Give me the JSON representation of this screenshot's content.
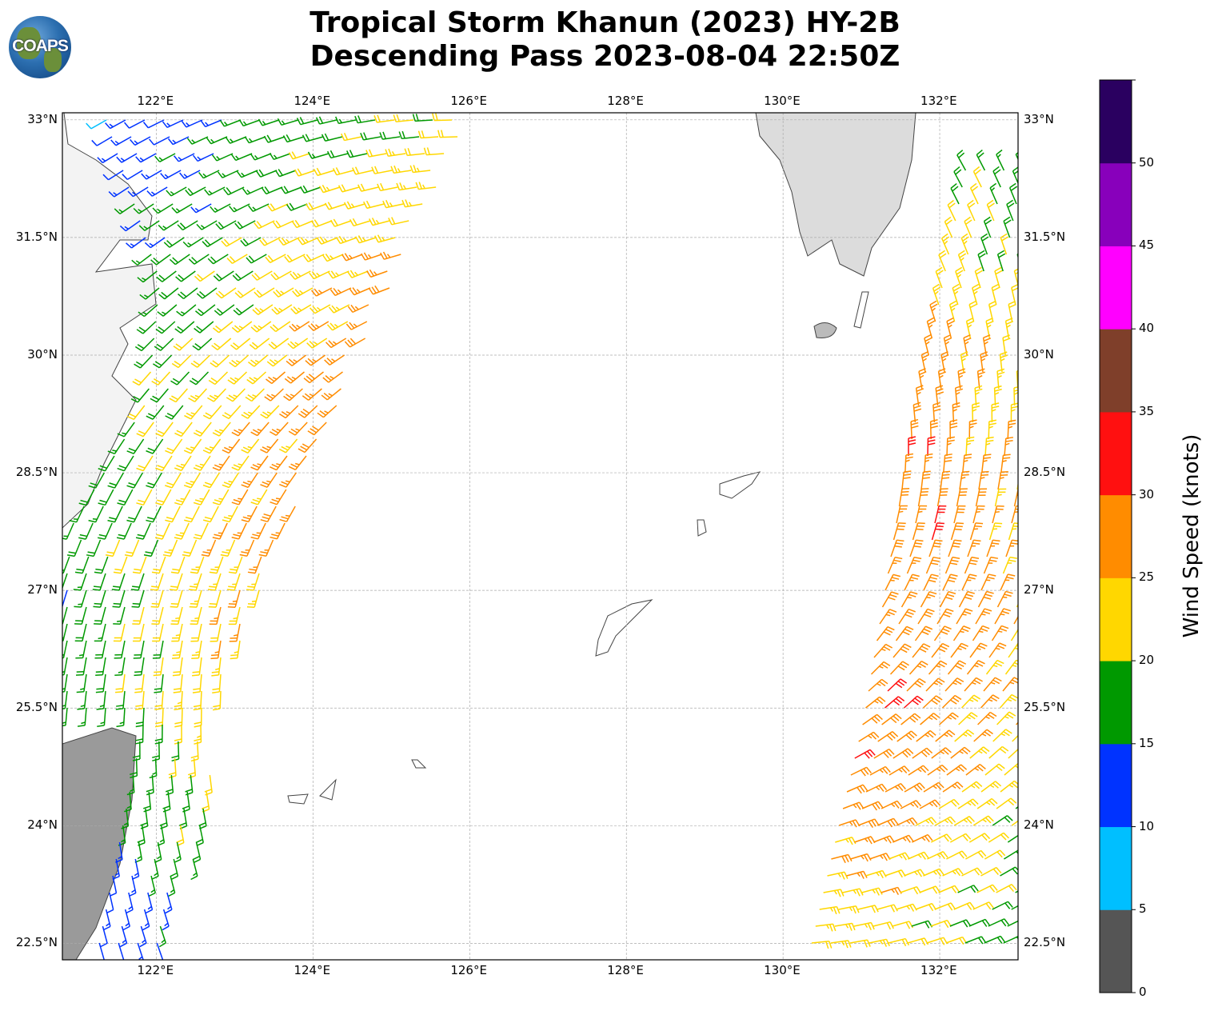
{
  "header": {
    "title_line1": "Tropical Storm Khanun (2023) HY-2B",
    "title_line2": "Descending Pass 2023-08-04 22:50Z",
    "logo_text": "COAPS"
  },
  "map": {
    "lon_ticks": [
      "122°E",
      "124°E",
      "126°E",
      "128°E",
      "130°E",
      "132°E"
    ],
    "lat_ticks": [
      "33°N",
      "31.5°N",
      "30°N",
      "28.5°N",
      "27°N",
      "25.5°N",
      "24°N",
      "22.5°N"
    ],
    "lon_values": [
      122,
      124,
      126,
      128,
      130,
      132
    ],
    "lat_values": [
      33,
      31.5,
      30,
      28.5,
      27,
      25.5,
      24,
      22.5
    ],
    "lon_range": [
      120.8,
      133.0
    ],
    "lat_range": [
      22.29,
      33.09
    ]
  },
  "colorbar": {
    "label": "Wind Speed (knots)",
    "ticks": [
      "0",
      "5",
      "10",
      "15",
      "20",
      "25",
      "30",
      "35",
      "40",
      "45",
      "50"
    ],
    "range": [
      0,
      55
    ],
    "colors": [
      "#555555",
      "#00bfff",
      "#0033ff",
      "#009900",
      "#ffd700",
      "#ff8c00",
      "#ff1010",
      "#7f3f2a",
      "#ff00ff",
      "#8800bb",
      "#2a0060"
    ]
  }
}
